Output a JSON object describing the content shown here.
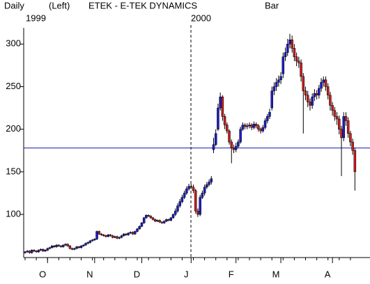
{
  "chart_data": {
    "type": "candlestick",
    "period": "Daily",
    "axis_side": "(Left)",
    "title": "ETEK - E-TEK DYNAMICS",
    "style": "Bar",
    "year_labels": [
      "1999",
      "2000"
    ],
    "categories": [
      null,
      null,
      null,
      null,
      null,
      null,
      null,
      null,
      null,
      null,
      "O",
      null,
      null,
      null,
      null,
      null,
      null,
      null,
      null,
      null,
      null,
      null,
      null,
      null,
      null,
      null,
      null,
      null,
      null,
      null,
      null,
      "N",
      null,
      null,
      null,
      null,
      null,
      null,
      null,
      null,
      null,
      null,
      null,
      null,
      null,
      null,
      null,
      null,
      null,
      null,
      null,
      null,
      "D",
      null,
      null,
      null,
      null,
      null,
      null,
      null,
      null,
      null,
      null,
      null,
      null,
      null,
      null,
      null,
      null,
      null,
      null,
      null,
      null,
      null,
      "J",
      null,
      null,
      null,
      null,
      null,
      null,
      null,
      null,
      null,
      null,
      null,
      null,
      null,
      null,
      null,
      null,
      null,
      null,
      null,
      "F",
      null,
      null,
      null,
      null,
      null,
      null,
      null,
      null,
      null,
      null,
      null,
      null,
      null,
      null,
      null,
      null,
      null,
      null,
      null,
      "M",
      null,
      null,
      null,
      null,
      null,
      null,
      null,
      null,
      null,
      null,
      null,
      null,
      null,
      null,
      null,
      null,
      null,
      null,
      null,
      null,
      null,
      null,
      "A",
      null,
      null,
      null,
      null,
      null,
      null,
      null,
      null,
      null,
      null
    ],
    "open": [
      55,
      56,
      57,
      55,
      58,
      57,
      56,
      58,
      59,
      57,
      58,
      60,
      61,
      63,
      62,
      64,
      63,
      62,
      64,
      65,
      63,
      60,
      59,
      60,
      62,
      61,
      63,
      64,
      66,
      67,
      69,
      70,
      71,
      80,
      77,
      76,
      75,
      74,
      76,
      75,
      73,
      74,
      72,
      73,
      75,
      77,
      76,
      78,
      79,
      77,
      80,
      83,
      86,
      90,
      96,
      99,
      98,
      96,
      94,
      92,
      93,
      91,
      90,
      92,
      94,
      93,
      96,
      100,
      104,
      110,
      115,
      120,
      125,
      130,
      133,
      132,
      128,
      104,
      100,
      120,
      125,
      132,
      135,
      138,
      176,
      182,
      200,
      225,
      238,
      215,
      205,
      198,
      185,
      178,
      176,
      180,
      185,
      200,
      205,
      203,
      204,
      205,
      202,
      206,
      204,
      200,
      198,
      202,
      210,
      215,
      225,
      245,
      250,
      255,
      258,
      265,
      285,
      290,
      300,
      305,
      295,
      285,
      280,
      278,
      262,
      245,
      240,
      232,
      228,
      238,
      242,
      240,
      248,
      255,
      258,
      250,
      240,
      228,
      222,
      215,
      212,
      200,
      190,
      215,
      210,
      195,
      185,
      175
    ],
    "high": [
      57,
      58,
      58,
      59,
      59,
      58,
      59,
      60,
      60,
      59,
      61,
      62,
      64,
      64,
      65,
      65,
      64,
      65,
      66,
      66,
      64,
      61,
      61,
      63,
      63,
      64,
      65,
      67,
      68,
      70,
      71,
      72,
      81,
      81,
      78,
      77,
      76,
      77,
      77,
      76,
      75,
      75,
      74,
      76,
      78,
      78,
      79,
      80,
      80,
      81,
      84,
      87,
      91,
      97,
      100,
      100,
      99,
      97,
      95,
      94,
      94,
      92,
      93,
      95,
      95,
      97,
      101,
      107,
      113,
      118,
      123,
      128,
      133,
      136,
      136,
      135,
      130,
      107,
      123,
      128,
      135,
      138,
      141,
      145,
      190,
      200,
      230,
      243,
      240,
      218,
      208,
      200,
      188,
      182,
      184,
      188,
      203,
      208,
      207,
      207,
      208,
      207,
      209,
      208,
      206,
      202,
      205,
      213,
      218,
      224,
      250,
      255,
      260,
      263,
      267,
      290,
      296,
      306,
      312,
      310,
      300,
      290,
      285,
      282,
      266,
      250,
      245,
      236,
      242,
      247,
      246,
      252,
      260,
      262,
      262,
      254,
      244,
      232,
      226,
      220,
      216,
      204,
      220,
      220,
      214,
      198,
      189,
      178
    ],
    "low": [
      54,
      55,
      54,
      54,
      56,
      55,
      55,
      57,
      56,
      56,
      57,
      59,
      60,
      61,
      61,
      62,
      61,
      61,
      63,
      62,
      59,
      58,
      58,
      59,
      60,
      60,
      62,
      63,
      65,
      66,
      68,
      69,
      70,
      76,
      75,
      74,
      73,
      73,
      74,
      72,
      72,
      71,
      71,
      72,
      74,
      75,
      75,
      77,
      76,
      76,
      79,
      82,
      85,
      89,
      95,
      97,
      95,
      93,
      91,
      91,
      90,
      89,
      89,
      91,
      92,
      92,
      95,
      98,
      102,
      108,
      113,
      118,
      123,
      128,
      130,
      125,
      101,
      97,
      98,
      118,
      122,
      130,
      133,
      135,
      172,
      180,
      198,
      222,
      210,
      200,
      195,
      182,
      160,
      172,
      173,
      178,
      183,
      198,
      200,
      200,
      201,
      199,
      200,
      201,
      197,
      195,
      196,
      200,
      207,
      212,
      222,
      240,
      245,
      250,
      253,
      260,
      280,
      286,
      295,
      290,
      280,
      274,
      272,
      256,
      195,
      234,
      226,
      222,
      224,
      233,
      235,
      236,
      244,
      250,
      245,
      235,
      222,
      216,
      210,
      205,
      194,
      145,
      186,
      204,
      190,
      180,
      170,
      128
    ],
    "close": [
      56,
      57,
      55,
      58,
      57,
      56,
      58,
      59,
      57,
      58,
      60,
      61,
      63,
      62,
      64,
      63,
      62,
      64,
      65,
      63,
      60,
      59,
      60,
      62,
      61,
      63,
      64,
      66,
      67,
      69,
      70,
      71,
      80,
      77,
      76,
      75,
      74,
      76,
      75,
      73,
      74,
      72,
      73,
      75,
      77,
      76,
      78,
      79,
      77,
      80,
      83,
      86,
      90,
      96,
      99,
      98,
      96,
      94,
      92,
      93,
      91,
      90,
      92,
      94,
      93,
      96,
      100,
      104,
      110,
      115,
      120,
      125,
      130,
      133,
      132,
      128,
      104,
      100,
      120,
      125,
      132,
      135,
      138,
      142,
      182,
      195,
      225,
      238,
      215,
      205,
      198,
      185,
      178,
      176,
      180,
      185,
      200,
      205,
      203,
      204,
      205,
      202,
      206,
      204,
      200,
      198,
      202,
      210,
      215,
      220,
      245,
      250,
      255,
      258,
      262,
      285,
      290,
      300,
      305,
      295,
      285,
      280,
      278,
      262,
      245,
      240,
      232,
      228,
      238,
      242,
      240,
      248,
      255,
      258,
      250,
      240,
      228,
      222,
      215,
      212,
      200,
      190,
      215,
      210,
      195,
      185,
      175,
      150
    ],
    "up_color": "#1c1ccc",
    "down_color": "#cc1c1c",
    "hline": {
      "value": 178,
      "color": "#1a1aa6"
    },
    "ylim": [
      51,
      337
    ],
    "yticks": [
      100,
      150,
      200,
      250,
      300
    ]
  }
}
